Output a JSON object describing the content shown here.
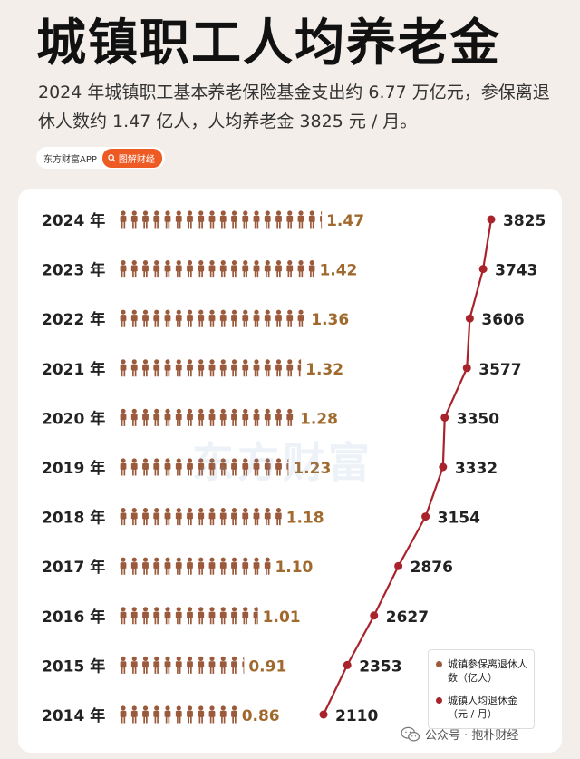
{
  "title": "城镇职工人均养老金",
  "subtitle": "2024 年城镇职工基本养老保险基金支出约 6.77 万亿元，参保离退休人数约 1.47 亿人，人均养老金 3825 元 / 月。",
  "source": {
    "app": "东方财富APP",
    "tag": "图解财经"
  },
  "watermark": "东方财富",
  "footer": "公众号 · 抱朴财经",
  "colors": {
    "people": "#9c5a3c",
    "people_label": "#a06a2e",
    "line": "#a8232b"
  },
  "chart_data": {
    "type": "bar",
    "title": "城镇职工人均养老金",
    "categories": [
      "2024 年",
      "2023 年",
      "2022 年",
      "2021 年",
      "2020 年",
      "2019 年",
      "2018 年",
      "2017 年",
      "2016 年",
      "2015 年",
      "2014 年"
    ],
    "series": [
      {
        "name": "城镇参保离退休人数（亿人）",
        "chart": "pictogram-bar",
        "values": [
          1.47,
          1.42,
          1.36,
          1.32,
          1.28,
          1.23,
          1.18,
          1.1,
          1.01,
          0.91,
          0.86
        ],
        "labels": [
          "1.47",
          "1.42",
          "1.36",
          "1.32",
          "1.28",
          "1.23",
          "1.18",
          "1.10",
          "1.01",
          "0.91",
          "0.86"
        ]
      },
      {
        "name": "城镇人均退休金（元 / 月）",
        "chart": "line",
        "values": [
          3825,
          3743,
          3606,
          3577,
          3350,
          3332,
          3154,
          2876,
          2627,
          2353,
          2110
        ],
        "labels": [
          "3825",
          "3743",
          "3606",
          "3577",
          "3350",
          "3332",
          "3154",
          "2876",
          "2627",
          "2353",
          "2110"
        ]
      }
    ],
    "legend": [
      {
        "label": "城镇参保离退休人数（亿人）",
        "color": "#9c5a3c"
      },
      {
        "label": "城镇人均退休金（元 / 月）",
        "color": "#a8232b"
      }
    ]
  }
}
